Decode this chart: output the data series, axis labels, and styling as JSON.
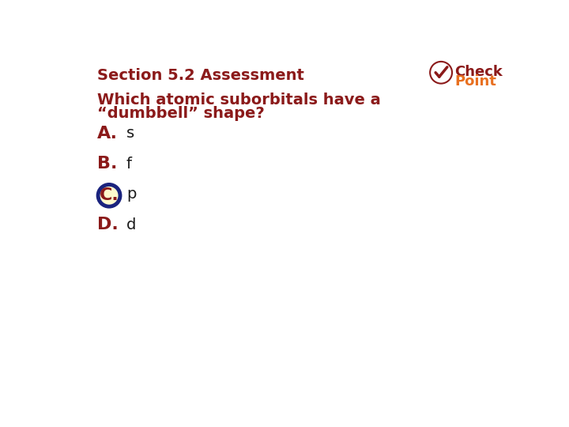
{
  "title": "Section 5.2 Assessment",
  "question_line1": "Which atomic suborbitals have a",
  "question_line2": "“dumbbell” shape?",
  "options": [
    {
      "label": "A.",
      "text": "s",
      "correct": false
    },
    {
      "label": "B.",
      "text": "f",
      "correct": false
    },
    {
      "label": "C.",
      "text": "p",
      "correct": true
    },
    {
      "label": "D.",
      "text": "d",
      "correct": false
    }
  ],
  "title_color": "#8B1A1A",
  "question_color": "#8B1A1A",
  "option_label_color": "#8B1A1A",
  "option_text_color": "#1A1A1A",
  "correct_circle_fill": "#FFFACD",
  "correct_circle_border": "#1A237E",
  "background_color": "#FFFFFF",
  "checkpoint_check_color": "#8B1A1A",
  "checkpoint_text_color_check": "#8B1A1A",
  "checkpoint_text_color_point": "#E87020",
  "title_fontsize": 14,
  "question_fontsize": 14,
  "option_label_fontsize": 16,
  "option_text_fontsize": 14,
  "checkpoint_fontsize": 13
}
